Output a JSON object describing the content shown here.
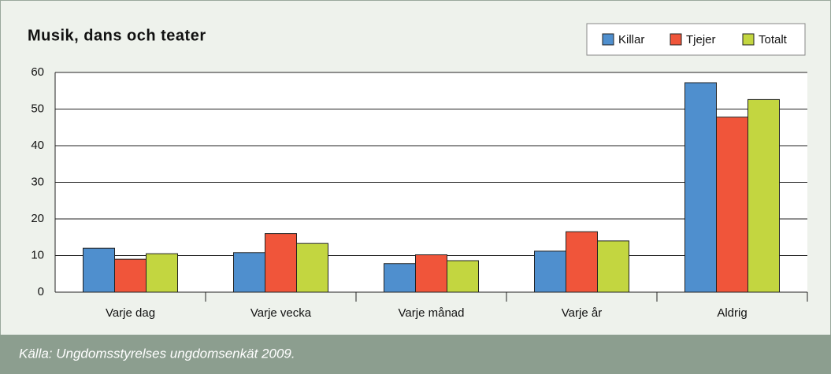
{
  "chart_data": {
    "type": "bar",
    "title": "Musik, dans och teater",
    "categories": [
      "Varje dag",
      "Varje vecka",
      "Varje månad",
      "Varje år",
      "Aldrig"
    ],
    "series": [
      {
        "name": "Killar",
        "color": "#4f8fce",
        "values": [
          12,
          10.8,
          7.8,
          11.2,
          57.2
        ]
      },
      {
        "name": "Tjejer",
        "color": "#f0553a",
        "values": [
          9,
          16,
          10.2,
          16.5,
          47.8
        ]
      },
      {
        "name": "Totalt",
        "color": "#c3d640",
        "values": [
          10.5,
          13.3,
          8.6,
          14,
          52.6
        ]
      }
    ],
    "ylim": [
      0,
      60
    ],
    "yticks": [
      0,
      10,
      20,
      30,
      40,
      50,
      60
    ],
    "grid": true,
    "legend": "top-right",
    "source": "Källa: Ungdomsstyrelses ungdomsenkät 2009."
  }
}
